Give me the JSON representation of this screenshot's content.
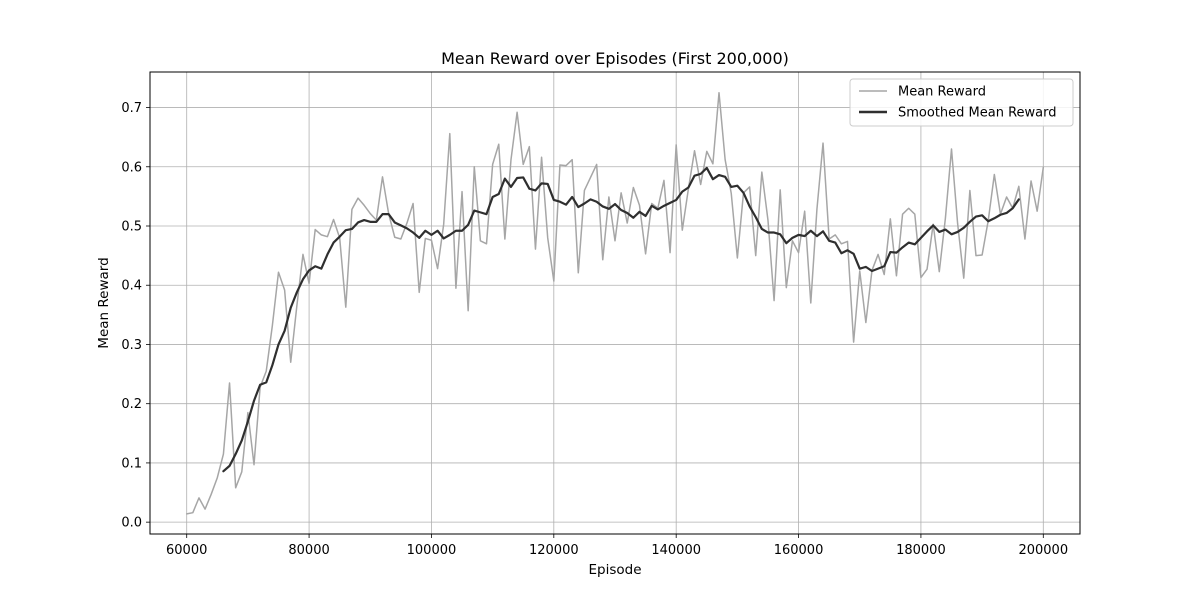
{
  "chart_data": {
    "type": "line",
    "title": "Mean Reward over Episodes (First 200,000)",
    "xlabel": "Episode",
    "ylabel": "Mean Reward",
    "xlim": [
      54000,
      206000
    ],
    "ylim": [
      -0.02,
      0.76
    ],
    "xticks": [
      60000,
      80000,
      100000,
      120000,
      140000,
      160000,
      180000,
      200000
    ],
    "xtick_labels": [
      "60000",
      "80000",
      "100000",
      "120000",
      "140000",
      "160000",
      "180000",
      "200000"
    ],
    "yticks": [
      0.0,
      0.1,
      0.2,
      0.3,
      0.4,
      0.5,
      0.6,
      0.7
    ],
    "ytick_labels": [
      "0.0",
      "0.1",
      "0.2",
      "0.3",
      "0.4",
      "0.5",
      "0.6",
      "0.7"
    ],
    "grid": true,
    "legend_position": "top-right",
    "series": [
      {
        "name": "Mean Reward",
        "color": "#a6a6a6",
        "x": [
          60000,
          61000,
          62000,
          63000,
          64000,
          65000,
          66000,
          67000,
          68000,
          69000,
          70000,
          71000,
          72000,
          73000,
          74000,
          75000,
          76000,
          77000,
          78000,
          79000,
          80000,
          81000,
          82000,
          83000,
          84000,
          85000,
          86000,
          87000,
          88000,
          89000,
          90000,
          91000,
          92000,
          93000,
          94000,
          95000,
          96000,
          97000,
          98000,
          99000,
          100000,
          101000,
          102000,
          103000,
          104000,
          105000,
          106000,
          107000,
          108000,
          109000,
          110000,
          111000,
          112000,
          113000,
          114000,
          115000,
          116000,
          117000,
          118000,
          119000,
          120000,
          121000,
          122000,
          123000,
          124000,
          125000,
          126000,
          127000,
          128000,
          129000,
          130000,
          131000,
          132000,
          133000,
          134000,
          135000,
          136000,
          137000,
          138000,
          139000,
          140000,
          141000,
          142000,
          143000,
          144000,
          145000,
          146000,
          147000,
          148000,
          149000,
          150000,
          151000,
          152000,
          153000,
          154000,
          155000,
          156000,
          157000,
          158000,
          159000,
          160000,
          161000,
          162000,
          163000,
          164000,
          165000,
          166000,
          167000,
          168000,
          169000,
          170000,
          171000,
          172000,
          173000,
          174000,
          175000,
          176000,
          177000,
          178000,
          179000,
          180000,
          181000,
          182000,
          183000,
          184000,
          185000,
          186000,
          187000,
          188000,
          189000,
          190000,
          191000,
          192000,
          193000,
          194000,
          195000,
          196000,
          197000,
          198000,
          199000,
          200000
        ],
        "y": [
          0.014,
          0.016,
          0.041,
          0.022,
          0.047,
          0.075,
          0.115,
          0.235,
          0.058,
          0.085,
          0.185,
          0.097,
          0.228,
          0.255,
          0.332,
          0.422,
          0.392,
          0.27,
          0.365,
          0.452,
          0.403,
          0.494,
          0.485,
          0.482,
          0.511,
          0.48,
          0.363,
          0.528,
          0.547,
          0.535,
          0.521,
          0.51,
          0.583,
          0.521,
          0.481,
          0.478,
          0.505,
          0.538,
          0.388,
          0.479,
          0.476,
          0.428,
          0.503,
          0.656,
          0.395,
          0.558,
          0.357,
          0.6,
          0.475,
          0.47,
          0.604,
          0.638,
          0.478,
          0.612,
          0.692,
          0.604,
          0.634,
          0.461,
          0.616,
          0.48,
          0.407,
          0.603,
          0.602,
          0.612,
          0.421,
          0.56,
          0.582,
          0.604,
          0.443,
          0.549,
          0.475,
          0.556,
          0.505,
          0.565,
          0.535,
          0.453,
          0.538,
          0.53,
          0.577,
          0.455,
          0.637,
          0.493,
          0.563,
          0.627,
          0.57,
          0.626,
          0.605,
          0.725,
          0.612,
          0.555,
          0.446,
          0.556,
          0.566,
          0.45,
          0.591,
          0.51,
          0.374,
          0.561,
          0.396,
          0.475,
          0.455,
          0.525,
          0.37,
          0.528,
          0.64,
          0.478,
          0.485,
          0.47,
          0.474,
          0.304,
          0.424,
          0.337,
          0.425,
          0.452,
          0.418,
          0.512,
          0.416,
          0.52,
          0.53,
          0.52,
          0.413,
          0.427,
          0.503,
          0.423,
          0.513,
          0.63,
          0.504,
          0.412,
          0.56,
          0.45,
          0.451,
          0.509,
          0.587,
          0.52,
          0.549,
          0.53,
          0.567,
          0.478,
          0.576,
          0.525,
          0.599
        ]
      },
      {
        "name": "Smoothed Mean Reward",
        "color": "#2f2f2f",
        "x": [
          66000,
          67000,
          68000,
          69000,
          70000,
          71000,
          72000,
          73000,
          74000,
          75000,
          76000,
          77000,
          78000,
          79000,
          80000,
          81000,
          82000,
          83000,
          84000,
          85000,
          86000,
          87000,
          88000,
          89000,
          90000,
          91000,
          92000,
          93000,
          94000,
          95000,
          96000,
          97000,
          98000,
          99000,
          100000,
          101000,
          102000,
          103000,
          104000,
          105000,
          106000,
          107000,
          108000,
          109000,
          110000,
          111000,
          112000,
          113000,
          114000,
          115000,
          116000,
          117000,
          118000,
          119000,
          120000,
          121000,
          122000,
          123000,
          124000,
          125000,
          126000,
          127000,
          128000,
          129000,
          130000,
          131000,
          132000,
          133000,
          134000,
          135000,
          136000,
          137000,
          138000,
          139000,
          140000,
          141000,
          142000,
          143000,
          144000,
          145000,
          146000,
          147000,
          148000,
          149000,
          150000,
          151000,
          152000,
          153000,
          154000,
          155000,
          156000,
          157000,
          158000,
          159000,
          160000,
          161000,
          162000,
          163000,
          164000,
          165000,
          166000,
          167000,
          168000,
          169000,
          170000,
          171000,
          172000,
          173000,
          174000,
          175000,
          176000,
          177000,
          178000,
          179000,
          180000,
          181000,
          182000,
          183000,
          184000,
          185000,
          186000,
          187000,
          188000,
          189000,
          190000,
          191000,
          192000,
          193000,
          194000,
          195000,
          196000
        ],
        "y": [
          0.086,
          0.095,
          0.115,
          0.138,
          0.17,
          0.205,
          0.232,
          0.236,
          0.265,
          0.3,
          0.323,
          0.362,
          0.388,
          0.41,
          0.425,
          0.432,
          0.428,
          0.452,
          0.472,
          0.482,
          0.493,
          0.495,
          0.506,
          0.51,
          0.507,
          0.507,
          0.52,
          0.52,
          0.506,
          0.501,
          0.496,
          0.489,
          0.48,
          0.492,
          0.485,
          0.492,
          0.479,
          0.485,
          0.492,
          0.492,
          0.502,
          0.526,
          0.523,
          0.52,
          0.549,
          0.554,
          0.58,
          0.566,
          0.581,
          0.582,
          0.563,
          0.56,
          0.572,
          0.571,
          0.544,
          0.541,
          0.536,
          0.549,
          0.532,
          0.538,
          0.545,
          0.541,
          0.533,
          0.529,
          0.537,
          0.527,
          0.522,
          0.514,
          0.524,
          0.517,
          0.534,
          0.528,
          0.534,
          0.539,
          0.544,
          0.558,
          0.565,
          0.585,
          0.588,
          0.598,
          0.579,
          0.586,
          0.583,
          0.566,
          0.568,
          0.556,
          0.533,
          0.515,
          0.495,
          0.489,
          0.489,
          0.486,
          0.471,
          0.48,
          0.485,
          0.483,
          0.492,
          0.483,
          0.491,
          0.475,
          0.472,
          0.454,
          0.459,
          0.453,
          0.428,
          0.431,
          0.424,
          0.428,
          0.432,
          0.456,
          0.455,
          0.464,
          0.472,
          0.469,
          0.48,
          0.491,
          0.501,
          0.49,
          0.494,
          0.486,
          0.49,
          0.497,
          0.507,
          0.516,
          0.518,
          0.508,
          0.513,
          0.519,
          0.522,
          0.53,
          0.545
        ]
      }
    ]
  }
}
